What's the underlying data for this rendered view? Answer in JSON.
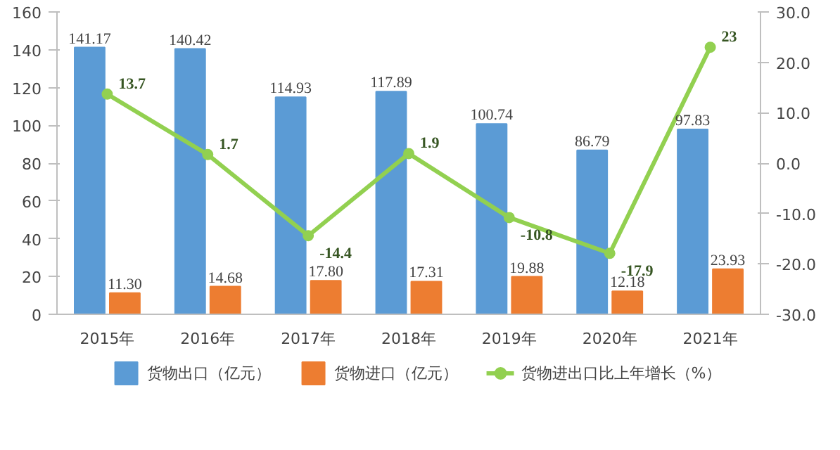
{
  "chart_data": {
    "type": "bar",
    "categories": [
      "2015年",
      "2016年",
      "2017年",
      "2018年",
      "2019年",
      "2020年",
      "2021年"
    ],
    "series": [
      {
        "name": "货物出口（亿元）",
        "color": "#5b9bd5",
        "values": [
          141.17,
          140.42,
          114.93,
          117.89,
          100.74,
          86.79,
          97.83
        ],
        "value_labels": [
          "141.17",
          "140.42",
          "114.93",
          "117.89",
          "100.74",
          "86.79",
          "97.83"
        ]
      },
      {
        "name": "货物进口（亿元）",
        "color": "#ed7d31",
        "values": [
          11.3,
          14.68,
          17.8,
          17.31,
          19.88,
          12.18,
          23.93
        ],
        "value_labels": [
          "11.30",
          "14.68",
          "17.80",
          "17.31",
          "19.88",
          "12.18",
          "23.93"
        ]
      },
      {
        "name": "货物进出口比上年增长（%）",
        "type": "line",
        "axis": "y2",
        "color": "#92d050",
        "marker": "circle",
        "values": [
          13.7,
          1.7,
          -14.4,
          1.9,
          -10.8,
          -17.9,
          23
        ],
        "value_labels": [
          "13.7",
          "1.7",
          "-14.4",
          "1.9",
          "-10.8",
          "-17.9",
          "23"
        ]
      }
    ],
    "ylim": [
      0,
      160
    ],
    "yticks": [
      0,
      20,
      40,
      60,
      80,
      100,
      120,
      140,
      160
    ],
    "y2lim": [
      -30,
      30
    ],
    "y2ticks": [
      {
        "value": -30,
        "label": "-30.0"
      },
      {
        "value": -20,
        "label": "-20.0"
      },
      {
        "value": -10,
        "label": "-10.0"
      },
      {
        "value": 0,
        "label": "0.0"
      },
      {
        "value": 10,
        "label": "10.0"
      },
      {
        "value": 20,
        "label": "20.0"
      },
      {
        "value": 30,
        "label": "30.0"
      }
    ],
    "legend": "bottom",
    "grid": false
  }
}
